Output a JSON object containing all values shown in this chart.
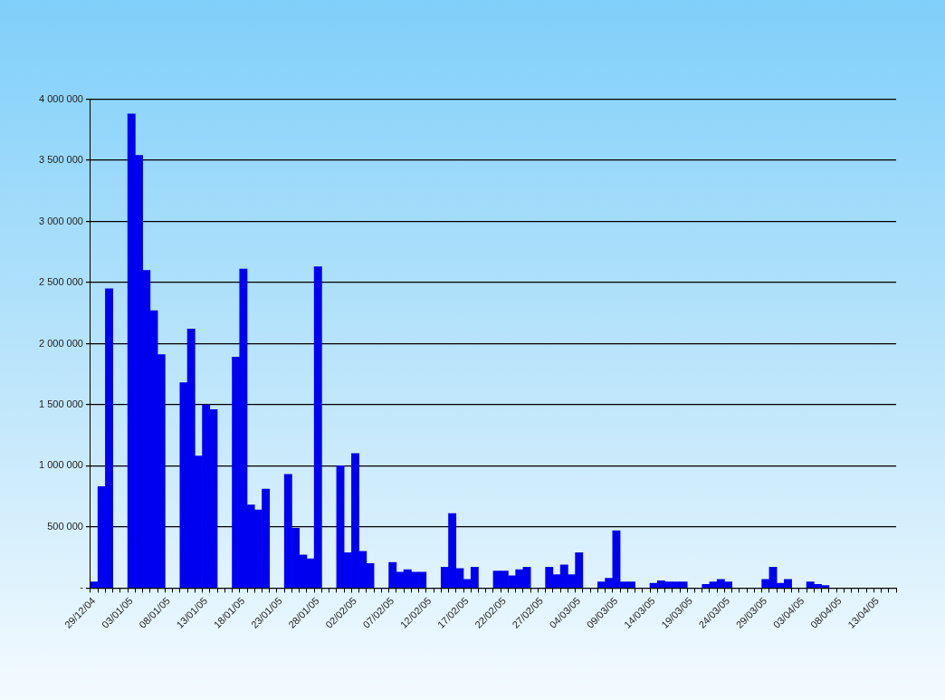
{
  "chart_data": {
    "type": "bar",
    "categories": [
      "29/12/04",
      null,
      null,
      null,
      null,
      "03/01/05",
      null,
      null,
      null,
      null,
      "08/01/05",
      null,
      null,
      null,
      null,
      "13/01/05",
      null,
      null,
      null,
      null,
      "18/01/05",
      null,
      null,
      null,
      null,
      "23/01/05",
      null,
      null,
      null,
      null,
      "28/01/05",
      null,
      null,
      null,
      null,
      "02/02/05",
      null,
      null,
      null,
      null,
      "07/02/05",
      null,
      null,
      null,
      null,
      "12/02/05",
      null,
      null,
      null,
      null,
      "17/02/05",
      null,
      null,
      null,
      null,
      "22/02/05",
      null,
      null,
      null,
      null,
      "27/02/05",
      null,
      null,
      null,
      null,
      "04/03/05",
      null,
      null,
      null,
      null,
      "09/03/05",
      null,
      null,
      null,
      null,
      "14/03/05",
      null,
      null,
      null,
      null,
      "19/03/05",
      null,
      null,
      null,
      null,
      "24/03/05",
      null,
      null,
      null,
      null,
      "29/03/05",
      null,
      null,
      null,
      null,
      "03/04/05",
      null,
      null,
      null,
      null,
      "08/04/05",
      null,
      null,
      null,
      null,
      "13/04/05",
      null,
      null
    ],
    "values": [
      50000,
      830000,
      2450000,
      null,
      null,
      3880000,
      3540000,
      2600000,
      2270000,
      1910000,
      null,
      null,
      1680000,
      2120000,
      1080000,
      1500000,
      1460000,
      null,
      null,
      1890000,
      2610000,
      680000,
      640000,
      810000,
      null,
      null,
      930000,
      490000,
      270000,
      240000,
      2630000,
      null,
      null,
      1000000,
      290000,
      1100000,
      300000,
      200000,
      null,
      null,
      210000,
      130000,
      150000,
      130000,
      130000,
      null,
      null,
      170000,
      610000,
      160000,
      70000,
      170000,
      null,
      null,
      140000,
      140000,
      100000,
      150000,
      170000,
      null,
      null,
      170000,
      110000,
      190000,
      110000,
      290000,
      null,
      null,
      50000,
      80000,
      470000,
      50000,
      50000,
      null,
      null,
      40000,
      60000,
      50000,
      50000,
      50000,
      null,
      null,
      30000,
      50000,
      70000,
      50000,
      null,
      null,
      null,
      null,
      70000,
      170000,
      40000,
      70000,
      null,
      null,
      50000,
      30000,
      20000,
      null,
      null,
      null,
      null,
      null,
      null,
      null,
      null,
      null
    ],
    "color": "#0000f0",
    "ylim": [
      0,
      4000000
    ],
    "yticks": [
      {
        "value": 0,
        "label": "-"
      },
      {
        "value": 500000,
        "label": "500 000"
      },
      {
        "value": 1000000,
        "label": "1 000 000"
      },
      {
        "value": 1500000,
        "label": "1 500 000"
      },
      {
        "value": 2000000,
        "label": "2 000 000"
      },
      {
        "value": 2500000,
        "label": "2 500 000"
      },
      {
        "value": 3000000,
        "label": "3 000 000"
      },
      {
        "value": 3500000,
        "label": "3 500 000"
      },
      {
        "value": 4000000,
        "label": "4 000 000"
      }
    ],
    "grid": "y"
  }
}
